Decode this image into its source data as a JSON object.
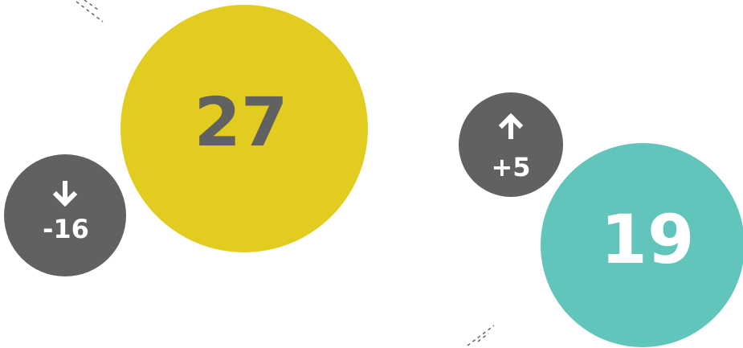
{
  "items": [
    {
      "value": "27",
      "change": "-16"
    },
    {
      "value": "19",
      "change": "+5"
    }
  ]
}
